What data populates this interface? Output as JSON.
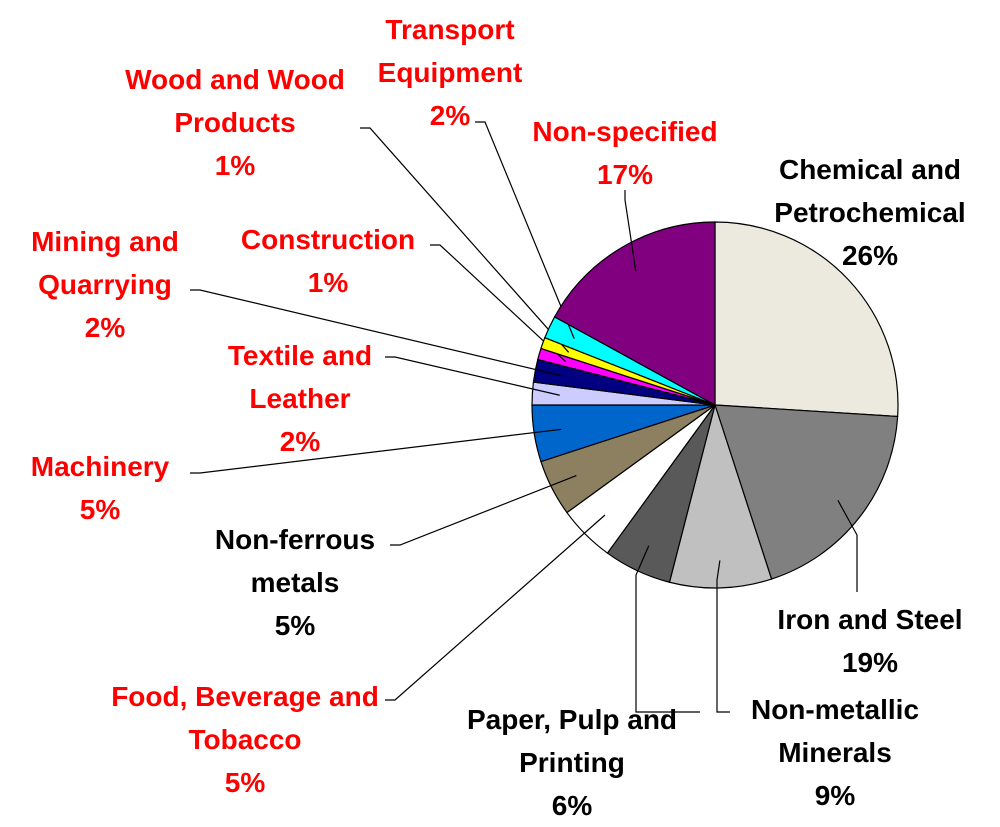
{
  "chart_data": {
    "type": "pie",
    "categories": [
      "Chemical and Petrochemical",
      "Iron and Steel",
      "Non-metallic Minerals",
      "Paper, Pulp and Printing",
      "Food, Beverage and Tobacco",
      "Non-ferrous metals",
      "Machinery",
      "Textile and Leather",
      "Mining and Quarrying",
      "Construction",
      "Wood and Wood Products",
      "Transport Equipment",
      "Non-specified"
    ],
    "values": [
      26,
      19,
      9,
      6,
      5,
      5,
      5,
      2,
      2,
      1,
      1,
      2,
      17
    ],
    "value_labels": [
      "26%",
      "19%",
      "9%",
      "6%",
      "5%",
      "5%",
      "5%",
      "2%",
      "2%",
      "1%",
      "1%",
      "2%",
      "17%"
    ],
    "colors": [
      "#eceadf",
      "#808080",
      "#c0c0c0",
      "#595959",
      "#ffffff",
      "#8c8060",
      "#0066cc",
      "#ccccff",
      "#000080",
      "#ff00ff",
      "#ffff00",
      "#00ffff",
      "#800080"
    ],
    "label_colors": [
      "#000000",
      "#000000",
      "#000000",
      "#000000",
      "#ff0000",
      "#000000",
      "#ff0000",
      "#ff0000",
      "#ff0000",
      "#ff0000",
      "#ff0000",
      "#ff0000",
      "#ff0000"
    ]
  }
}
